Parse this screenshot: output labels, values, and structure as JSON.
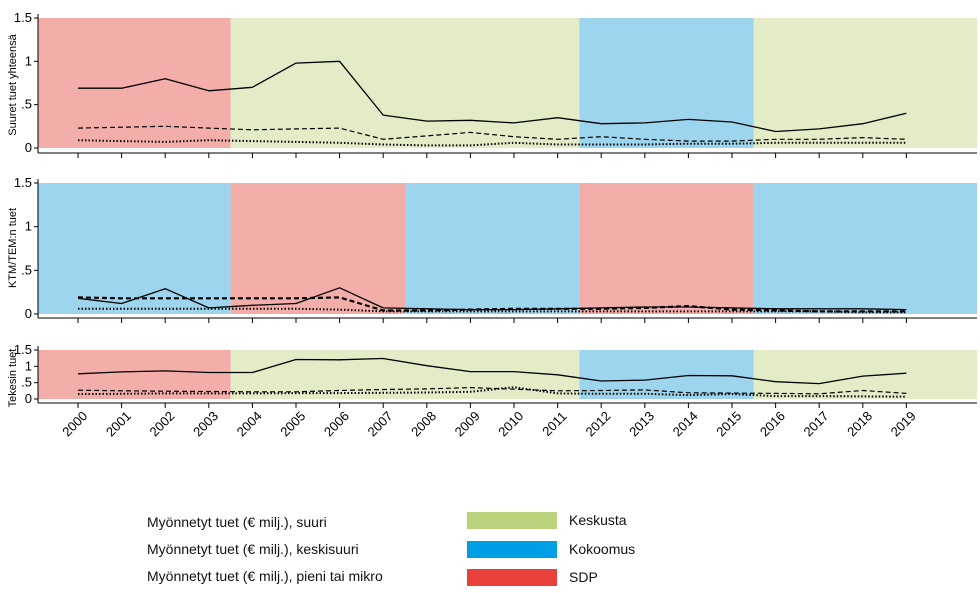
{
  "chart_data": {
    "type": "line",
    "x": [
      "2000",
      "2001",
      "2002",
      "2003",
      "2004",
      "2005",
      "2006",
      "2007",
      "2008",
      "2009",
      "2010",
      "2011",
      "2012",
      "2013",
      "2014",
      "2015",
      "2016",
      "2017",
      "2018",
      "2019"
    ],
    "panels": [
      {
        "ylabel": "Suuret tuet yhteensä",
        "ylim": [
          0,
          1.5
        ],
        "yticks": [
          "0",
          ".5",
          "1",
          "1.5"
        ],
        "ytick_values": [
          0,
          0.5,
          1,
          1.5
        ],
        "party_periods": [
          {
            "party": "SDP",
            "from": "2000",
            "to": "2003"
          },
          {
            "party": "Keskusta",
            "from": "2004",
            "to": "2011"
          },
          {
            "party": "Kokoomus",
            "from": "2012",
            "to": "2015"
          },
          {
            "party": "Keskusta",
            "from": "2016",
            "to": "2019"
          }
        ],
        "series": [
          {
            "name": "Myönnetyt tuet (€ milj.), suuri",
            "style": "solid",
            "values": [
              0.69,
              0.69,
              0.8,
              0.66,
              0.7,
              0.98,
              1.0,
              0.38,
              0.31,
              0.32,
              0.29,
              0.35,
              0.28,
              0.29,
              0.33,
              0.3,
              0.19,
              0.22,
              0.28,
              0.4
            ]
          },
          {
            "name": "Myönnetyt tuet (€ milj.), keskisuuri",
            "style": "dashed",
            "values": [
              0.23,
              0.24,
              0.25,
              0.23,
              0.21,
              0.22,
              0.23,
              0.1,
              0.14,
              0.18,
              0.13,
              0.1,
              0.13,
              0.1,
              0.08,
              0.08,
              0.1,
              0.1,
              0.12,
              0.1
            ]
          },
          {
            "name": "Myönnetyt tuet (€ milj.), pieni tai mikro",
            "style": "dotted",
            "values": [
              0.09,
              0.08,
              0.07,
              0.09,
              0.08,
              0.07,
              0.06,
              0.04,
              0.03,
              0.03,
              0.06,
              0.04,
              0.04,
              0.04,
              0.05,
              0.05,
              0.06,
              0.06,
              0.06,
              0.06
            ]
          }
        ]
      },
      {
        "ylabel": "KTM/TEM:n tuet",
        "ylim": [
          0,
          1.5
        ],
        "yticks": [
          "0",
          ".5",
          "1",
          "1.5"
        ],
        "ytick_values": [
          0,
          0.5,
          1,
          1.5
        ],
        "party_periods": [
          {
            "party": "Kokoomus",
            "from": "2000",
            "to": "2003"
          },
          {
            "party": "SDP",
            "from": "2004",
            "to": "2007"
          },
          {
            "party": "Kokoomus",
            "from": "2008",
            "to": "2011"
          },
          {
            "party": "SDP",
            "from": "2012",
            "to": "2015"
          },
          {
            "party": "Kokoomus",
            "from": "2016",
            "to": "2019"
          }
        ],
        "series": [
          {
            "name": "Myönnetyt tuet (€ milj.), suuri",
            "style": "solid",
            "values": [
              0.18,
              0.12,
              0.29,
              0.07,
              0.1,
              0.12,
              0.3,
              0.07,
              0.06,
              0.05,
              0.05,
              0.06,
              0.07,
              0.08,
              0.08,
              0.07,
              0.06,
              0.06,
              0.06,
              0.05
            ]
          },
          {
            "name": "Myönnetyt tuet (€ milj.), keskisuuri",
            "style": "dashed",
            "values": [
              0.19,
              0.18,
              0.18,
              0.18,
              0.18,
              0.18,
              0.19,
              0.04,
              0.04,
              0.05,
              0.06,
              0.06,
              0.06,
              0.07,
              0.09,
              0.05,
              0.04,
              0.03,
              0.03,
              0.03
            ]
          },
          {
            "name": "Myönnetyt tuet (€ milj.), pieni tai mikro",
            "style": "dotted",
            "values": [
              0.06,
              0.06,
              0.06,
              0.06,
              0.06,
              0.06,
              0.05,
              0.03,
              0.03,
              0.03,
              0.03,
              0.03,
              0.03,
              0.03,
              0.03,
              0.03,
              0.03,
              0.03,
              0.02,
              0.02
            ]
          }
        ]
      },
      {
        "ylabel": "Tekesin tuet",
        "ylim": [
          0,
          1.5
        ],
        "yticks": [
          "0",
          ".5",
          "1",
          "1.5"
        ],
        "ytick_values": [
          0,
          0.5,
          1,
          1.5
        ],
        "party_periods": [
          {
            "party": "SDP",
            "from": "2000",
            "to": "2003"
          },
          {
            "party": "Keskusta",
            "from": "2004",
            "to": "2011"
          },
          {
            "party": "Kokoomus",
            "from": "2012",
            "to": "2015"
          },
          {
            "party": "Keskusta",
            "from": "2016",
            "to": "2019"
          }
        ],
        "series": [
          {
            "name": "Myönnetyt tuet (€ milj.), suuri",
            "style": "solid",
            "values": [
              0.77,
              0.83,
              0.86,
              0.81,
              0.81,
              1.21,
              1.2,
              1.24,
              1.02,
              0.84,
              0.84,
              0.74,
              0.55,
              0.58,
              0.72,
              0.71,
              0.53,
              0.47,
              0.7,
              0.79
            ]
          },
          {
            "name": "Myönnetyt tuet (€ milj.), keskisuuri",
            "style": "dashed",
            "values": [
              0.27,
              0.25,
              0.24,
              0.23,
              0.22,
              0.22,
              0.26,
              0.29,
              0.31,
              0.35,
              0.3,
              0.25,
              0.26,
              0.28,
              0.19,
              0.18,
              0.17,
              0.16,
              0.26,
              0.17
            ]
          },
          {
            "name": "Myönnetyt tuet (€ milj.), pieni tai mikro",
            "style": "dotted",
            "values": [
              0.15,
              0.16,
              0.17,
              0.17,
              0.17,
              0.18,
              0.18,
              0.19,
              0.2,
              0.22,
              0.36,
              0.17,
              0.16,
              0.16,
              0.12,
              0.15,
              0.09,
              0.09,
              0.08,
              0.07
            ]
          }
        ]
      }
    ],
    "legend": {
      "lines": [
        {
          "label": "Myönnetyt tuet (€ milj.), suuri",
          "style": "solid"
        },
        {
          "label": "Myönnetyt tuet (€ milj.), keskisuuri",
          "style": "dashed"
        },
        {
          "label": "Myönnetyt tuet (€ milj.), pieni tai mikro",
          "style": "dotted"
        }
      ],
      "parties": [
        {
          "label": "Keskusta",
          "color": "#bcd37e"
        },
        {
          "label": "Kokoomus",
          "color": "#009fe3"
        },
        {
          "label": "SDP",
          "color": "#e8403a"
        }
      ]
    },
    "shading_colors": {
      "Keskusta": "#e4ecc7",
      "Kokoomus": "#9dd5ee",
      "SDP": "#f3aeaa"
    },
    "grid": false,
    "legend_position": "bottom"
  }
}
